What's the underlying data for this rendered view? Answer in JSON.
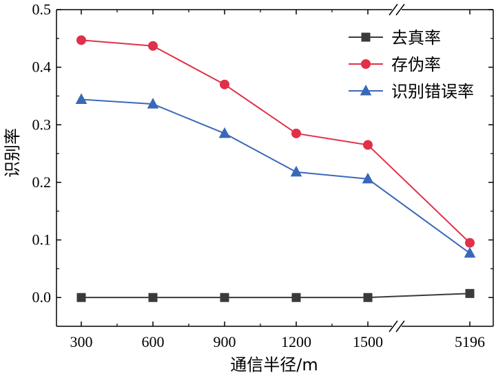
{
  "chart_data": {
    "type": "line",
    "categories": [
      "300",
      "600",
      "900",
      "1200",
      "1500",
      "5196"
    ],
    "xlabel": "通信半径/m",
    "ylabel": "识别率",
    "ylim": [
      -0.05,
      0.5
    ],
    "yticks": [
      "0.0",
      "0.1",
      "0.2",
      "0.3",
      "0.4",
      "0.5"
    ],
    "x_axis_break": "between 1500 and 5196",
    "legend_position": "top-right",
    "grid": false,
    "series": [
      {
        "name": "去真率",
        "color": "#3a3a3a",
        "marker": "square",
        "values": [
          0.0,
          0.0,
          0.0,
          0.0,
          0.0,
          0.007
        ]
      },
      {
        "name": "存伪率",
        "color": "#e0304a",
        "marker": "circle",
        "values": [
          0.447,
          0.437,
          0.37,
          0.285,
          0.265,
          0.095
        ]
      },
      {
        "name": "识别错误率",
        "color": "#3a68b8",
        "marker": "triangle",
        "values": [
          0.344,
          0.336,
          0.285,
          0.218,
          0.206,
          0.077
        ]
      }
    ]
  }
}
